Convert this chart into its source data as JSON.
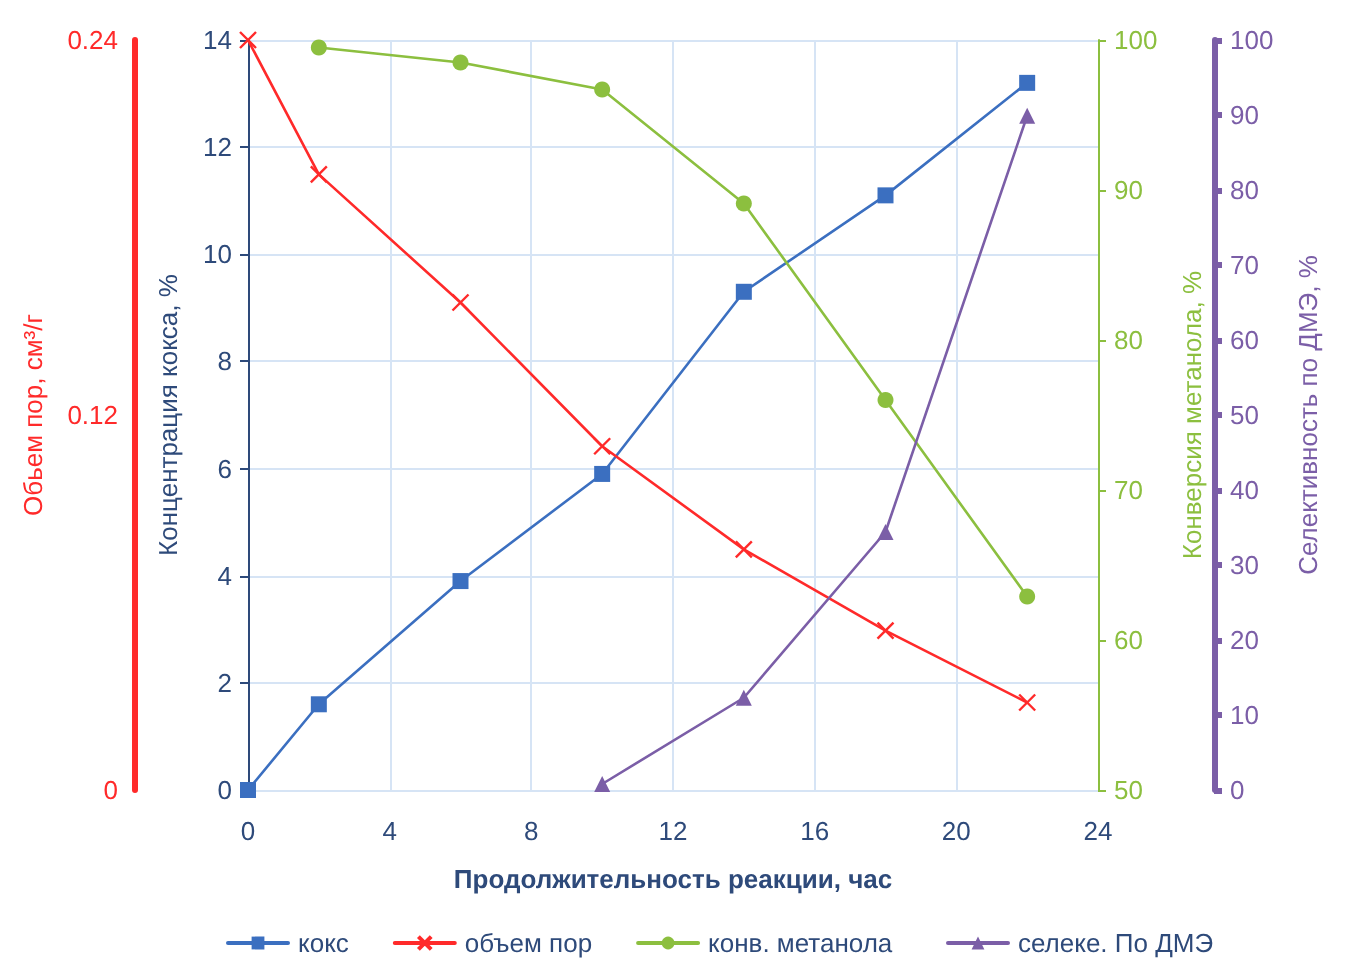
{
  "chart_data": [
    {
      "type": "line",
      "xlabel": "Продолжительность реакции, час",
      "ylabel": "Концентрация кокса, %",
      "y2label": "Обьем пор, см³/г",
      "y3label": "Конверсия метанола, %",
      "xlim": [
        0,
        24
      ],
      "xticks": [
        0,
        4,
        8,
        12,
        16,
        20,
        24
      ],
      "ylim": [
        0,
        14
      ],
      "yticks": [
        0,
        2,
        4,
        6,
        8,
        10,
        12,
        14
      ],
      "y2lim": [
        0,
        0.24
      ],
      "y2ticks": [
        0,
        0.12,
        0.24
      ],
      "y3lim": [
        50,
        100
      ],
      "y3ticks": [
        50,
        60,
        70,
        80,
        90,
        100
      ],
      "grid": true,
      "legend": "bottom",
      "line_style": "solid",
      "series": [
        {
          "name": "кокс",
          "color": "#3b6fc0",
          "marker": "square",
          "x": [
            0,
            2,
            6,
            10,
            14,
            18,
            22
          ],
          "values": [
            0,
            1.6,
            3.9,
            5.9,
            9.3,
            11.1,
            13.2
          ]
        },
        {
          "name": "объем пор",
          "color": "#ff2a2a",
          "marker": "cross",
          "axis": "y2",
          "x": [
            0,
            2,
            6,
            10,
            14,
            18,
            22
          ],
          "values": [
            0.24,
            0.197,
            0.156,
            0.11,
            0.077,
            0.051,
            0.028
          ]
        },
        {
          "name": "конв. метанола",
          "color": "#8cbf3f",
          "marker": "circle",
          "axis": "y3",
          "x": [
            2,
            6,
            10,
            14,
            18,
            22
          ],
          "values": [
            99.5,
            98.5,
            96.7,
            89.1,
            76,
            62.9
          ]
        }
      ]
    },
    {
      "type": "line",
      "ylabel": "Селективность по ДМЭ, %",
      "xlim": [
        0,
        24
      ],
      "ylim": [
        0,
        100
      ],
      "yticks": [
        0,
        10,
        20,
        30,
        40,
        50,
        60,
        70,
        80,
        90,
        100
      ],
      "tick_labels": "y",
      "legend": "bottom",
      "line_style": "solid",
      "series": [
        {
          "name": "селеке. По ДМЭ",
          "color": "#7b5ea7",
          "marker": "triangle",
          "x": [
            10,
            14,
            18,
            22
          ],
          "values": [
            0.8,
            12.3,
            34.4,
            89.9
          ]
        }
      ]
    }
  ]
}
